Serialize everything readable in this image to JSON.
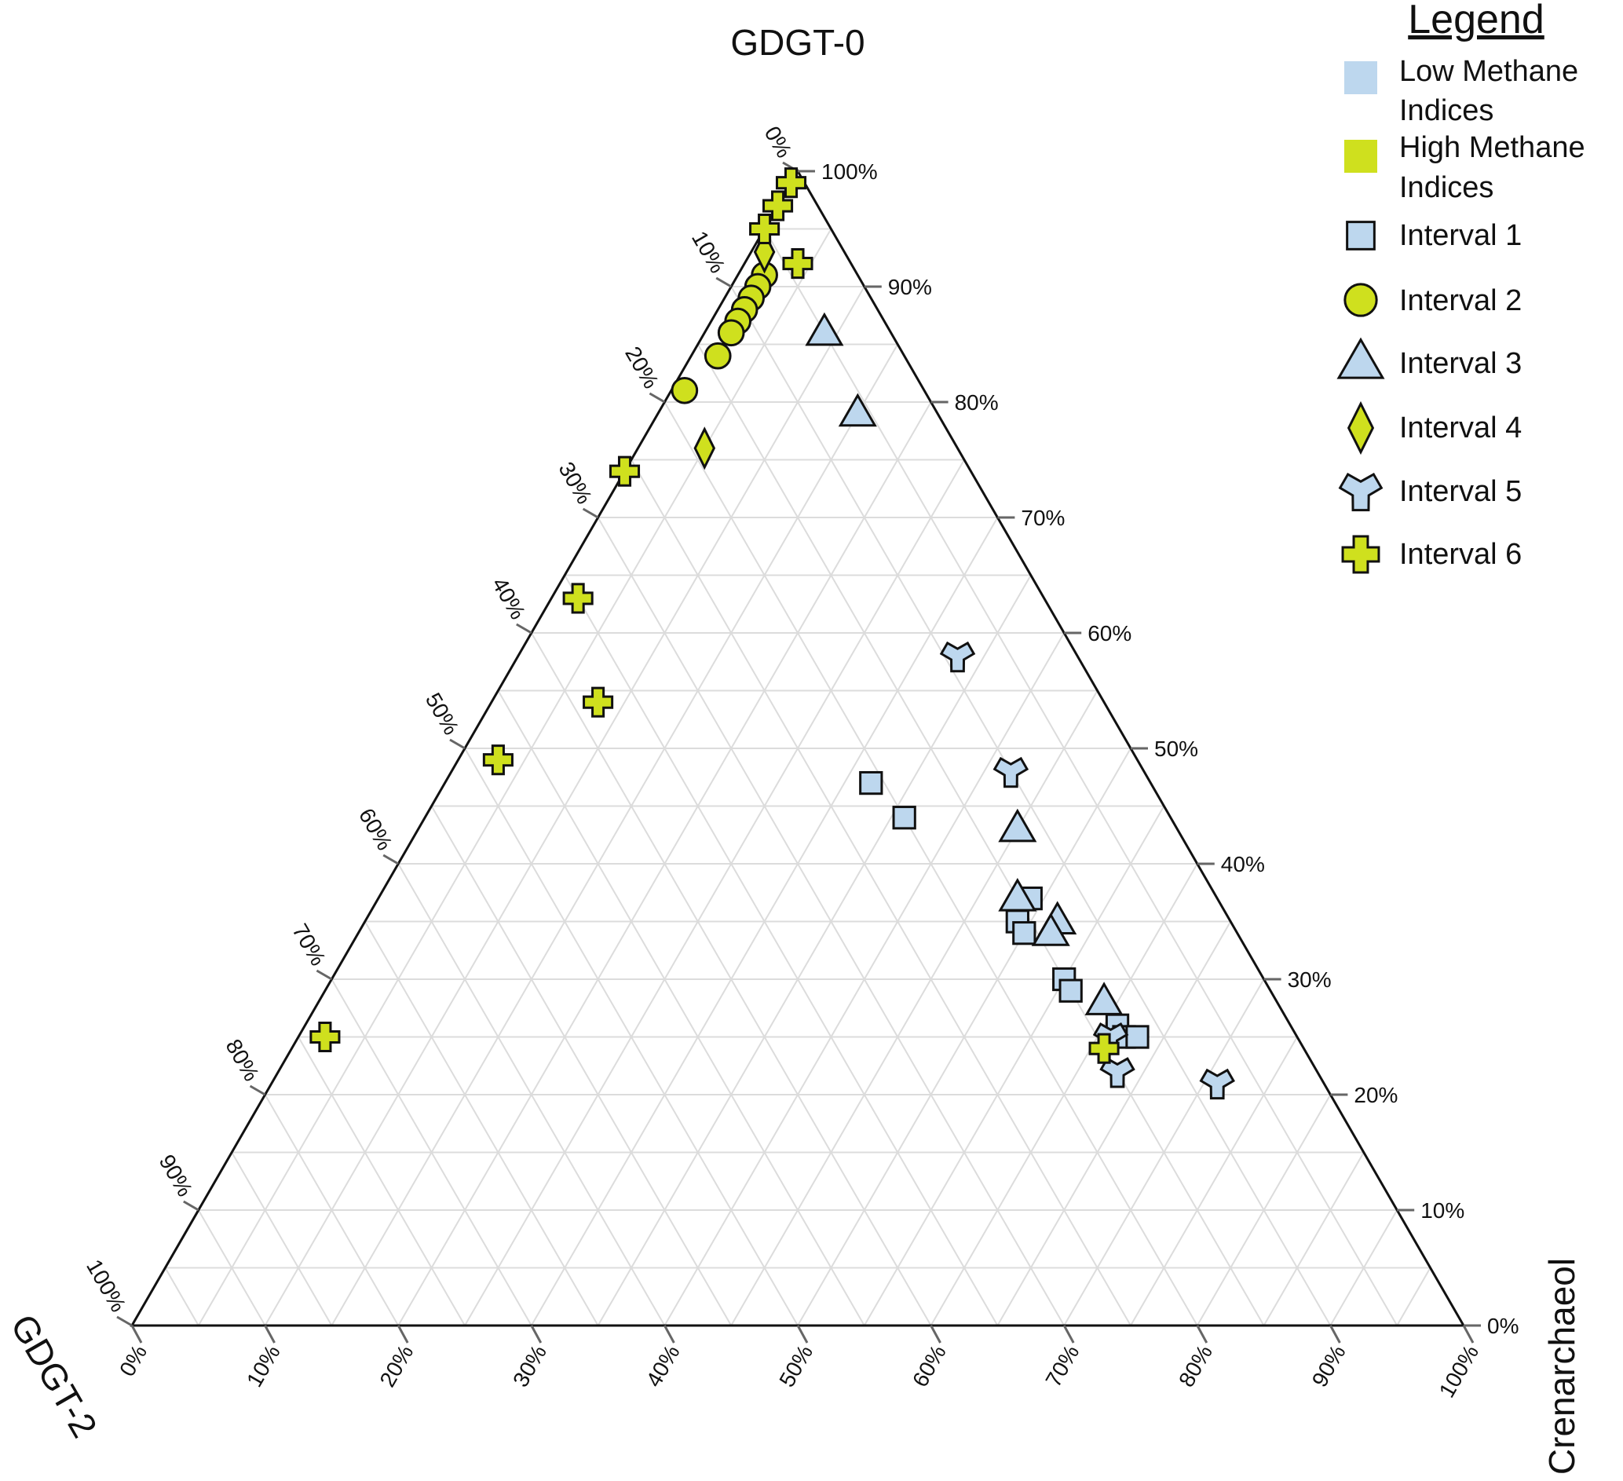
{
  "chart_data": {
    "type": "scatter",
    "subtype": "ternary",
    "axes": {
      "top": "GDGT-0",
      "left": "GDGT-2",
      "right": "Crenarchaeol"
    },
    "tick_values": [
      0,
      10,
      20,
      30,
      40,
      50,
      60,
      70,
      80,
      90,
      100
    ],
    "tick_suffix": "%",
    "grid": true,
    "grid_step": 5,
    "legend": {
      "title": "Legend",
      "position": "top-right",
      "color_entries": [
        {
          "label_lines": [
            "Low Methane",
            "Indices"
          ],
          "color": "#bdd7ee"
        },
        {
          "label_lines": [
            "High Methane",
            "Indices"
          ],
          "color": "#cfe01e"
        }
      ],
      "marker_entries": [
        {
          "label": "Interval 1",
          "shape": "square-icon",
          "color": "#bdd7ee"
        },
        {
          "label": "Interval 2",
          "shape": "circle-icon",
          "color": "#cfe01e"
        },
        {
          "label": "Interval 3",
          "shape": "triangle-icon",
          "color": "#bdd7ee"
        },
        {
          "label": "Interval 4",
          "shape": "diamond-icon",
          "color": "#cfe01e"
        },
        {
          "label": "Interval 5",
          "shape": "tri-star-icon",
          "color": "#bdd7ee"
        },
        {
          "label": "Interval 6",
          "shape": "cross-icon",
          "color": "#cfe01e"
        }
      ]
    },
    "series": [
      {
        "name": "Interval 1",
        "shape": "square",
        "color": "#bdd7ee",
        "points": [
          {
            "gdgt0": 47,
            "gdgt2": 21,
            "cren": 32
          },
          {
            "gdgt0": 44,
            "gdgt2": 20,
            "cren": 36
          },
          {
            "gdgt0": 37,
            "gdgt2": 14,
            "cren": 49
          },
          {
            "gdgt0": 35,
            "gdgt2": 16,
            "cren": 49
          },
          {
            "gdgt0": 34,
            "gdgt2": 16,
            "cren": 50
          },
          {
            "gdgt0": 30,
            "gdgt2": 15,
            "cren": 55
          },
          {
            "gdgt0": 29,
            "gdgt2": 15,
            "cren": 56
          },
          {
            "gdgt0": 26,
            "gdgt2": 13,
            "cren": 61
          },
          {
            "gdgt0": 25,
            "gdgt2": 13,
            "cren": 62
          },
          {
            "gdgt0": 25,
            "gdgt2": 12,
            "cren": 63
          }
        ]
      },
      {
        "name": "Interval 2",
        "shape": "circle",
        "color": "#cfe01e",
        "points": [
          {
            "gdgt0": 91,
            "gdgt2": 7,
            "cren": 2
          },
          {
            "gdgt0": 90,
            "gdgt2": 8,
            "cren": 2
          },
          {
            "gdgt0": 89,
            "gdgt2": 9,
            "cren": 2
          },
          {
            "gdgt0": 88,
            "gdgt2": 10,
            "cren": 2
          },
          {
            "gdgt0": 87,
            "gdgt2": 11,
            "cren": 2
          },
          {
            "gdgt0": 86,
            "gdgt2": 12,
            "cren": 2
          },
          {
            "gdgt0": 84,
            "gdgt2": 14,
            "cren": 2
          },
          {
            "gdgt0": 81,
            "gdgt2": 18,
            "cren": 1
          }
        ]
      },
      {
        "name": "Interval 3",
        "shape": "triangle",
        "color": "#bdd7ee",
        "points": [
          {
            "gdgt0": 86,
            "gdgt2": 5,
            "cren": 9
          },
          {
            "gdgt0": 79,
            "gdgt2": 6,
            "cren": 15
          },
          {
            "gdgt0": 43,
            "gdgt2": 12,
            "cren": 45
          },
          {
            "gdgt0": 37,
            "gdgt2": 15,
            "cren": 48
          },
          {
            "gdgt0": 35,
            "gdgt2": 13,
            "cren": 52
          },
          {
            "gdgt0": 34,
            "gdgt2": 14,
            "cren": 52
          },
          {
            "gdgt0": 28,
            "gdgt2": 13,
            "cren": 59
          }
        ]
      },
      {
        "name": "Interval 4",
        "shape": "diamond",
        "color": "#cfe01e",
        "points": [
          {
            "gdgt0": 93,
            "gdgt2": 6,
            "cren": 1
          },
          {
            "gdgt0": 76,
            "gdgt2": 19,
            "cren": 5
          }
        ]
      },
      {
        "name": "Interval 5",
        "shape": "tristar",
        "color": "#bdd7ee",
        "points": [
          {
            "gdgt0": 58,
            "gdgt2": 9,
            "cren": 33
          },
          {
            "gdgt0": 48,
            "gdgt2": 10,
            "cren": 42
          },
          {
            "gdgt0": 25,
            "gdgt2": 14,
            "cren": 61
          },
          {
            "gdgt0": 22,
            "gdgt2": 15,
            "cren": 63
          },
          {
            "gdgt0": 21,
            "gdgt2": 8,
            "cren": 71
          }
        ]
      },
      {
        "name": "Interval 6",
        "shape": "cross",
        "color": "#cfe01e",
        "points": [
          {
            "gdgt0": 99,
            "gdgt2": 1,
            "cren": 0
          },
          {
            "gdgt0": 97,
            "gdgt2": 3,
            "cren": 0
          },
          {
            "gdgt0": 95,
            "gdgt2": 5,
            "cren": 0
          },
          {
            "gdgt0": 92,
            "gdgt2": 4,
            "cren": 4
          },
          {
            "gdgt0": 74,
            "gdgt2": 26,
            "cren": 0
          },
          {
            "gdgt0": 63,
            "gdgt2": 35,
            "cren": 2
          },
          {
            "gdgt0": 54,
            "gdgt2": 38,
            "cren": 8
          },
          {
            "gdgt0": 49,
            "gdgt2": 48,
            "cren": 3
          },
          {
            "gdgt0": 25,
            "gdgt2": 73,
            "cren": 2
          },
          {
            "gdgt0": 24,
            "gdgt2": 15,
            "cren": 61
          }
        ]
      }
    ]
  }
}
